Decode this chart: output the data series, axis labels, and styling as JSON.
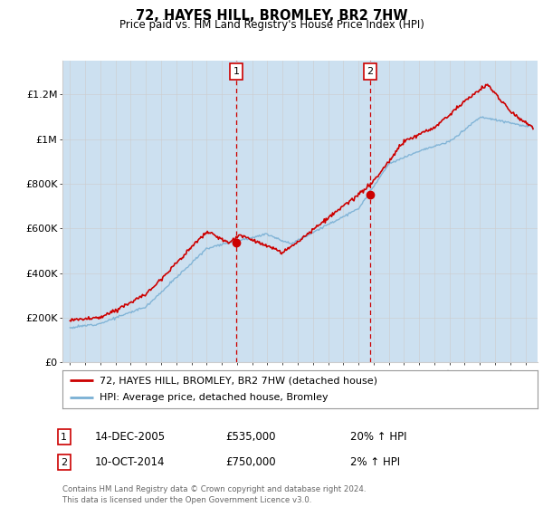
{
  "title": "72, HAYES HILL, BROMLEY, BR2 7HW",
  "subtitle": "Price paid vs. HM Land Registry's House Price Index (HPI)",
  "ylabel_ticks": [
    "£0",
    "£200K",
    "£400K",
    "£600K",
    "£800K",
    "£1M",
    "£1.2M"
  ],
  "ytick_values": [
    0,
    200000,
    400000,
    600000,
    800000,
    1000000,
    1200000
  ],
  "ylim": [
    0,
    1350000
  ],
  "xlim_start": 1994.5,
  "xlim_end": 2025.8,
  "transaction1_x": 2005.95,
  "transaction1_y": 535000,
  "transaction2_x": 2014.77,
  "transaction2_y": 750000,
  "shade_alpha": 0.18,
  "legend_line1": "72, HAYES HILL, BROMLEY, BR2 7HW (detached house)",
  "legend_line2": "HPI: Average price, detached house, Bromley",
  "annotation1_date": "14-DEC-2005",
  "annotation1_price": "£535,000",
  "annotation1_hpi": "20% ↑ HPI",
  "annotation2_date": "10-OCT-2014",
  "annotation2_price": "£750,000",
  "annotation2_hpi": "2% ↑ HPI",
  "footer": "Contains HM Land Registry data © Crown copyright and database right 2024.\nThis data is licensed under the Open Government Licence v3.0.",
  "color_red": "#cc0000",
  "color_blue": "#7ab0d4",
  "color_shade": "#cce0f0",
  "color_dashed": "#cc0000",
  "background_color": "#ffffff",
  "grid_color": "#cccccc"
}
